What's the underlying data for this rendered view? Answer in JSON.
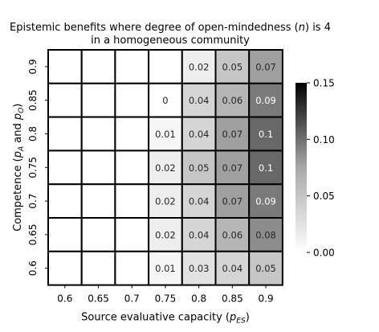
{
  "chart_data": {
    "type": "heatmap",
    "title_lines": [
      {
        "before": "Epistemic benefits where degree of open-mindedness (",
        "sym": "n",
        "after": ") is 4"
      },
      {
        "before": "in a homogeneous community",
        "sym": "",
        "after": ""
      }
    ],
    "xlabel": {
      "before": "Source evaluative capacity (",
      "sym": "p",
      "sub": "ES",
      "after": ")"
    },
    "ylabel": {
      "before": "Competence (",
      "sym1": "p",
      "sub1": "A",
      "mid": " and ",
      "sym2": "p",
      "sub2": "O",
      "after": ")"
    },
    "x_categories": [
      "0.6",
      "0.65",
      "0.7",
      "0.75",
      "0.8",
      "0.85",
      "0.9"
    ],
    "y_categories": [
      "0.9",
      "0.85",
      "0.8",
      "0.75",
      "0.7",
      "0.65",
      "0.6"
    ],
    "values": [
      [
        null,
        null,
        null,
        null,
        0.02,
        0.05,
        0.07
      ],
      [
        null,
        null,
        null,
        0,
        0.04,
        0.06,
        0.09
      ],
      [
        null,
        null,
        null,
        0.01,
        0.04,
        0.07,
        0.1
      ],
      [
        null,
        null,
        null,
        0.02,
        0.05,
        0.07,
        0.1
      ],
      [
        null,
        null,
        null,
        0.02,
        0.04,
        0.07,
        0.09
      ],
      [
        null,
        null,
        null,
        0.02,
        0.04,
        0.06,
        0.08
      ],
      [
        null,
        null,
        null,
        0.01,
        0.03,
        0.04,
        0.05
      ]
    ],
    "colorbar": {
      "min": 0,
      "max": 0.15,
      "ticks": [
        0.0,
        0.05,
        0.1,
        0.15
      ],
      "tick_labels": [
        "0.00",
        "0.05",
        "0.10",
        "0.15"
      ],
      "colormap": "Greys"
    }
  }
}
